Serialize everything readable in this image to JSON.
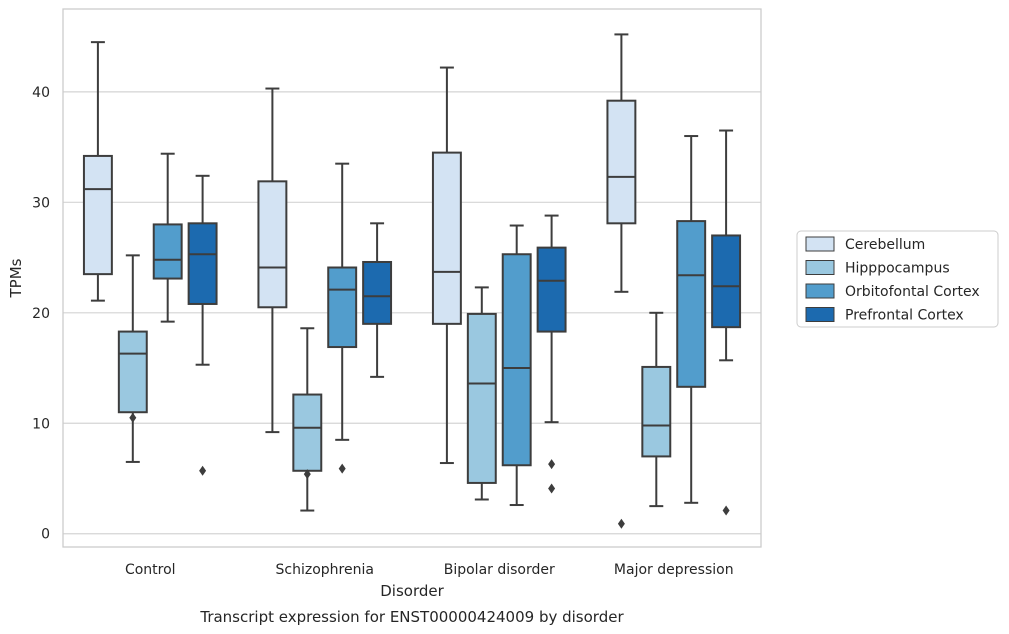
{
  "caption": "Transcript expression for ENST00000424009 by disorder",
  "chart_data": {
    "type": "box",
    "xlabel": "Disorder",
    "ylabel": "TPMs",
    "ylim": [
      -1.2,
      47.5
    ],
    "yticks": [
      0,
      10,
      20,
      30,
      40
    ],
    "grid": "horizontal",
    "legend_position": "right",
    "categories": [
      "Control",
      "Schizophrenia",
      "Bipolar disorder",
      "Major depression"
    ],
    "series": [
      {
        "name": "Cerebellum",
        "color": "#d3e3f3",
        "boxes": [
          {
            "whislo": 21.1,
            "q1": 23.5,
            "med": 31.2,
            "q3": 34.2,
            "whishi": 44.5,
            "fliers": []
          },
          {
            "whislo": 9.2,
            "q1": 20.5,
            "med": 24.1,
            "q3": 31.9,
            "whishi": 40.3,
            "fliers": []
          },
          {
            "whislo": 6.4,
            "q1": 19.0,
            "med": 23.7,
            "q3": 34.5,
            "whishi": 42.2,
            "fliers": []
          },
          {
            "whislo": 21.9,
            "q1": 28.1,
            "med": 32.3,
            "q3": 39.2,
            "whishi": 45.2,
            "fliers": [
              0.9
            ]
          }
        ]
      },
      {
        "name": "Hipppocampus",
        "color": "#9ac8e0",
        "boxes": [
          {
            "whislo": 6.5,
            "q1": 11.0,
            "med": 16.3,
            "q3": 18.3,
            "whishi": 25.2,
            "fliers": [
              10.5
            ]
          },
          {
            "whislo": 2.1,
            "q1": 5.7,
            "med": 9.6,
            "q3": 12.6,
            "whishi": 18.6,
            "fliers": [
              5.4
            ]
          },
          {
            "whislo": 3.1,
            "q1": 4.6,
            "med": 13.6,
            "q3": 19.9,
            "whishi": 22.3,
            "fliers": []
          },
          {
            "whislo": 2.5,
            "q1": 7.0,
            "med": 9.8,
            "q3": 15.1,
            "whishi": 20.0,
            "fliers": []
          }
        ]
      },
      {
        "name": "Orbitofontal Cortex",
        "color": "#529dcc",
        "boxes": [
          {
            "whislo": 19.2,
            "q1": 23.1,
            "med": 24.8,
            "q3": 28.0,
            "whishi": 34.4,
            "fliers": []
          },
          {
            "whislo": 8.5,
            "q1": 16.9,
            "med": 22.1,
            "q3": 24.1,
            "whishi": 33.5,
            "fliers": [
              5.9
            ]
          },
          {
            "whislo": 2.6,
            "q1": 6.2,
            "med": 15.0,
            "q3": 25.3,
            "whishi": 27.9,
            "fliers": []
          },
          {
            "whislo": 2.8,
            "q1": 13.3,
            "med": 23.4,
            "q3": 28.3,
            "whishi": 36.0,
            "fliers": []
          }
        ]
      },
      {
        "name": "Prefrontal Cortex",
        "color": "#1c6aaf",
        "boxes": [
          {
            "whislo": 15.3,
            "q1": 20.8,
            "med": 25.3,
            "q3": 28.1,
            "whishi": 32.4,
            "fliers": [
              5.7
            ]
          },
          {
            "whislo": 14.2,
            "q1": 19.0,
            "med": 21.5,
            "q3": 24.6,
            "whishi": 28.1,
            "fliers": []
          },
          {
            "whislo": 10.1,
            "q1": 18.3,
            "med": 22.9,
            "q3": 25.9,
            "whishi": 28.8,
            "fliers": [
              6.3,
              4.1
            ]
          },
          {
            "whislo": 15.7,
            "q1": 18.7,
            "med": 22.4,
            "q3": 27.0,
            "whishi": 36.5,
            "fliers": [
              2.1
            ]
          }
        ]
      }
    ]
  }
}
